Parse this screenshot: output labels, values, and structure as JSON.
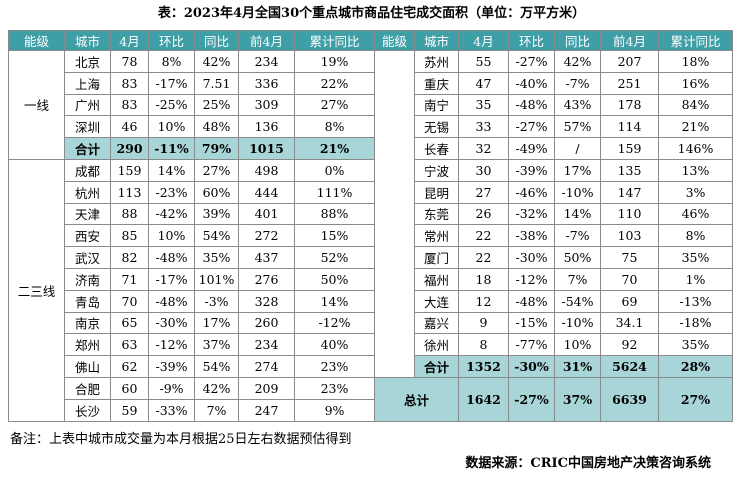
{
  "title": "表：2023年4月全国30个重点城市商品住宅成交面积（单位：万平方米）",
  "table": {
    "header": [
      "能级",
      "城市",
      "4月",
      "环比",
      "同比",
      "前4月",
      "累计同比",
      "能级",
      "城市",
      "4月",
      "环比",
      "同比",
      "前4月",
      "累计同比"
    ],
    "left": [
      {
        "level": "一线",
        "rows": [
          [
            "北京",
            "78",
            "8%",
            "42%",
            "234",
            "19%"
          ],
          [
            "上海",
            "83",
            "-17%",
            "7.51",
            "336",
            "22%"
          ],
          [
            "广州",
            "83",
            "-25%",
            "25%",
            "309",
            "27%"
          ],
          [
            "深圳",
            "46",
            "10%",
            "48%",
            "136",
            "8%"
          ]
        ],
        "subtotal": [
          "合计",
          "290",
          "-11%",
          "79%",
          "1015",
          "21%"
        ]
      },
      {
        "level": "二三线",
        "rows": [
          [
            "成都",
            "159",
            "14%",
            "27%",
            "498",
            "0%"
          ],
          [
            "杭州",
            "113",
            "-23%",
            "60%",
            "444",
            "111%"
          ],
          [
            "天津",
            "88",
            "-42%",
            "39%",
            "401",
            "88%"
          ],
          [
            "西安",
            "85",
            "10%",
            "54%",
            "272",
            "15%"
          ],
          [
            "武汉",
            "82",
            "-48%",
            "35%",
            "437",
            "52%"
          ],
          [
            "济南",
            "71",
            "-17%",
            "101%",
            "276",
            "50%"
          ],
          [
            "青岛",
            "70",
            "-48%",
            "-3%",
            "328",
            "14%"
          ],
          [
            "南京",
            "65",
            "-30%",
            "17%",
            "260",
            "-12%"
          ],
          [
            "郑州",
            "63",
            "-12%",
            "37%",
            "234",
            "40%"
          ],
          [
            "佛山",
            "62",
            "-39%",
            "54%",
            "274",
            "23%"
          ],
          [
            "合肥",
            "60",
            "-9%",
            "42%",
            "209",
            "23%"
          ],
          [
            "长沙",
            "59",
            "-33%",
            "7%",
            "247",
            "9%"
          ]
        ]
      }
    ],
    "right": {
      "rows": [
        [
          "苏州",
          "55",
          "-27%",
          "42%",
          "207",
          "18%"
        ],
        [
          "重庆",
          "47",
          "-40%",
          "-7%",
          "251",
          "16%"
        ],
        [
          "南宁",
          "35",
          "-48%",
          "43%",
          "178",
          "84%"
        ],
        [
          "无锡",
          "33",
          "-27%",
          "57%",
          "114",
          "21%"
        ],
        [
          "长春",
          "32",
          "-49%",
          "/",
          "159",
          "146%"
        ],
        [
          "宁波",
          "30",
          "-39%",
          "17%",
          "135",
          "13%"
        ],
        [
          "昆明",
          "27",
          "-46%",
          "-10%",
          "147",
          "3%"
        ],
        [
          "东莞",
          "26",
          "-32%",
          "14%",
          "110",
          "46%"
        ],
        [
          "常州",
          "22",
          "-38%",
          "-7%",
          "103",
          "8%"
        ],
        [
          "厦门",
          "22",
          "-30%",
          "50%",
          "75",
          "35%"
        ],
        [
          "福州",
          "18",
          "-12%",
          "7%",
          "70",
          "1%"
        ],
        [
          "大连",
          "12",
          "-48%",
          "-54%",
          "69",
          "-13%"
        ],
        [
          "嘉兴",
          "9",
          "-15%",
          "-10%",
          "34.1",
          "-18%"
        ],
        [
          "徐州",
          "8",
          "-77%",
          "10%",
          "92",
          "35%"
        ]
      ],
      "subtotal": [
        "合计",
        "1352",
        "-30%",
        "31%",
        "5624",
        "28%"
      ],
      "total": [
        "总计",
        "1642",
        "-27%",
        "37%",
        "6639",
        "27%"
      ]
    }
  },
  "footnote": "备注：上表中城市成交量为本月根据25日左右数据预估得到",
  "source": "数据来源：CRIC中国房地产决策咨询系统"
}
